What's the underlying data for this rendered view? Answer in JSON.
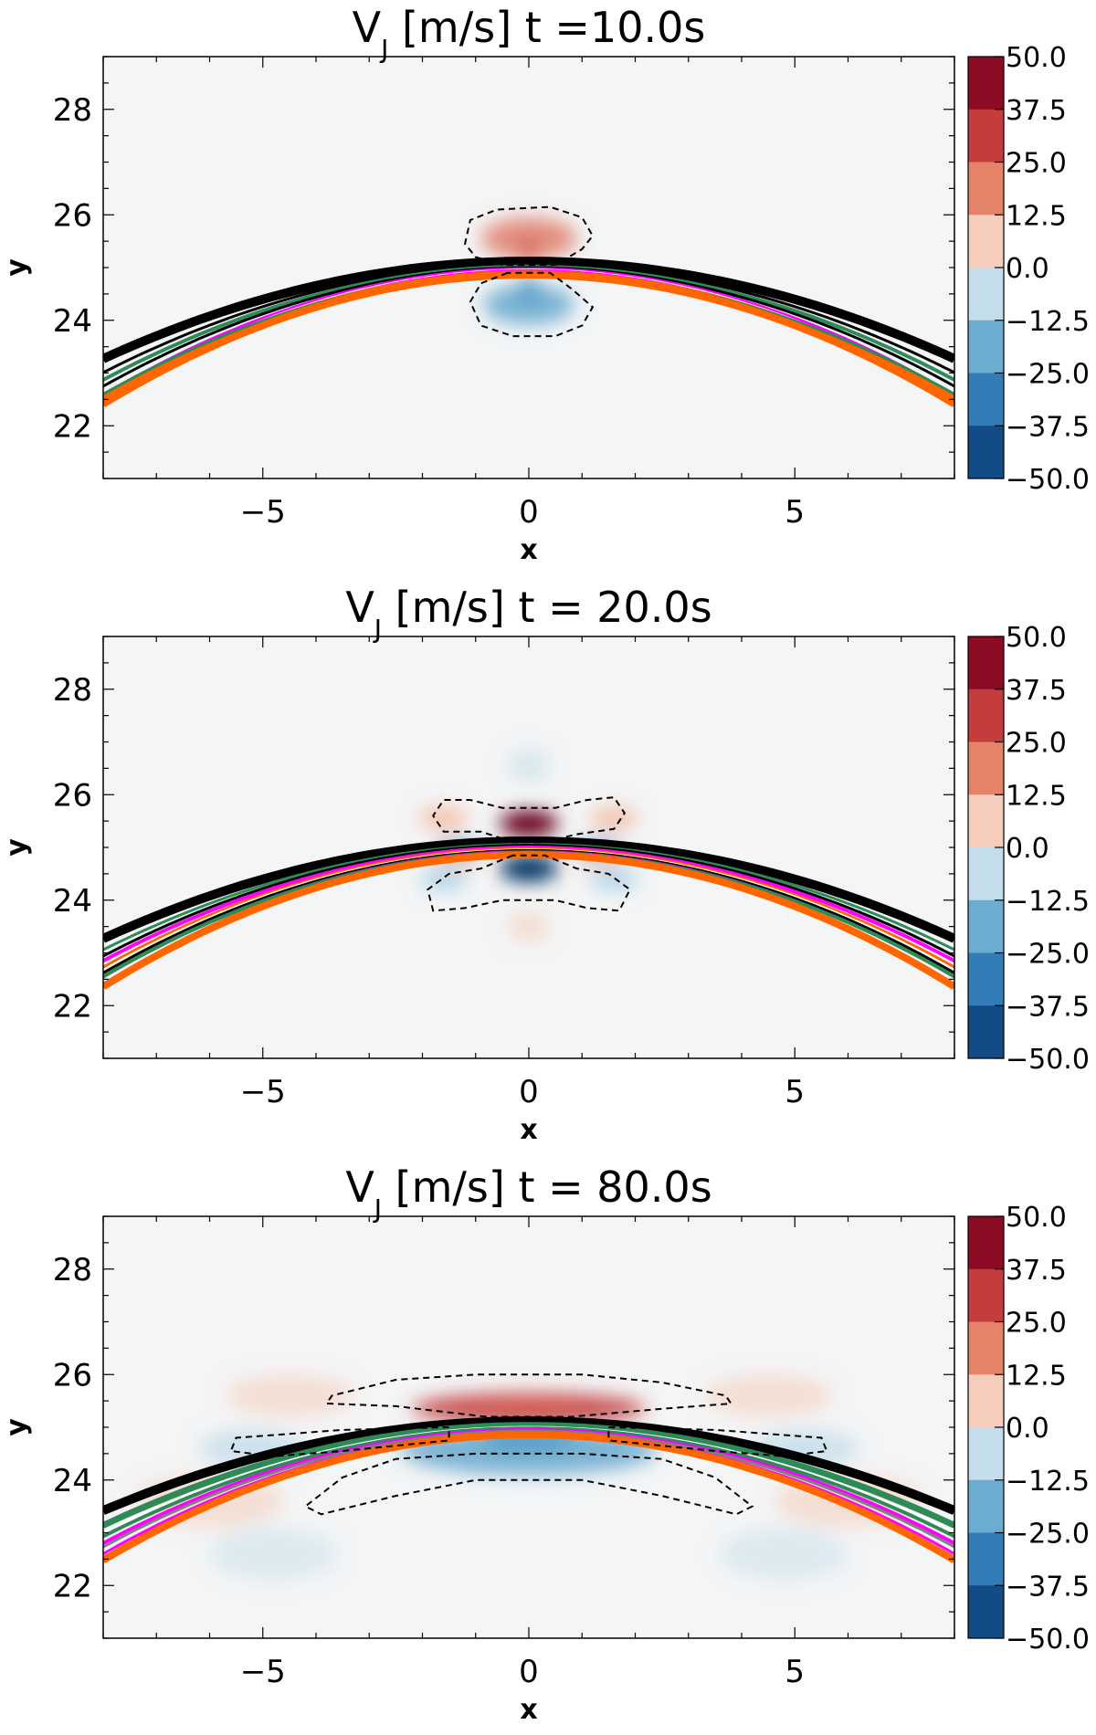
{
  "chart_data": [
    {
      "type": "heatmap",
      "title": "V_J [m/s] t =10.0s",
      "title_main": "V",
      "title_sub": "J",
      "title_rest": " [m/s]  t =10.0s",
      "xlabel": "x",
      "ylabel": "y",
      "xlim": [
        -8,
        8
      ],
      "ylim": [
        21,
        29
      ],
      "xticks": [
        "−5",
        "0",
        "5"
      ],
      "xtick_values": [
        -5,
        0,
        5
      ],
      "yticks": [
        "22",
        "24",
        "26",
        "28"
      ],
      "ytick_values": [
        22,
        24,
        26,
        28
      ],
      "colorbar_range": [
        -50,
        50
      ],
      "colorbar_ticks": [
        "50.0",
        "37.5",
        "25.0",
        "12.5",
        "0.0",
        "−12.5",
        "−25.0",
        "−37.5",
        "−50.0"
      ],
      "colorbar_tick_values": [
        50,
        37.5,
        25,
        12.5,
        0,
        -12.5,
        -25,
        -37.5,
        -50
      ],
      "velocity_features": [
        {
          "sign": "positive",
          "x": 0,
          "y": 25.55,
          "sx": 0.9,
          "sy": 0.4,
          "amp": 22
        },
        {
          "sign": "positive",
          "x": 0,
          "y": 25.3,
          "sx": 0.12,
          "sy": 0.25,
          "amp": 30
        },
        {
          "sign": "negative",
          "x": 0,
          "y": 24.3,
          "sx": 0.85,
          "sy": 0.38,
          "amp": 22
        },
        {
          "sign": "negative",
          "x": 0,
          "y": 24.6,
          "sx": 0.12,
          "sy": 0.25,
          "amp": 30
        }
      ],
      "contours": [
        [
          [
            -0.5,
            25.05
          ],
          [
            -1.0,
            25.2
          ],
          [
            -1.2,
            25.45
          ],
          [
            -1.1,
            25.9
          ],
          [
            -0.6,
            26.1
          ],
          [
            0.4,
            26.15
          ],
          [
            1.0,
            25.95
          ],
          [
            1.2,
            25.6
          ],
          [
            1.0,
            25.35
          ],
          [
            0.5,
            25.05
          ]
        ],
        [
          [
            -0.4,
            24.9
          ],
          [
            -0.9,
            24.7
          ],
          [
            -1.1,
            24.35
          ],
          [
            -0.9,
            23.9
          ],
          [
            -0.3,
            23.7
          ],
          [
            0.5,
            23.7
          ],
          [
            1.0,
            23.9
          ],
          [
            1.2,
            24.25
          ],
          [
            0.8,
            24.6
          ],
          [
            0.4,
            24.9
          ]
        ]
      ],
      "field_lines": [
        {
          "color": "#000000",
          "apex": 25.12,
          "drop": 1.85,
          "width": 10
        },
        {
          "color": "#000000",
          "apex": 25.06,
          "drop": 2.05,
          "width": 3
        },
        {
          "color": "#2e8b57",
          "apex": 25.02,
          "drop": 2.15,
          "width": 4
        },
        {
          "color": "#000000",
          "apex": 25.0,
          "drop": 2.25,
          "width": 3
        },
        {
          "color": "#ff00ff",
          "apex": 24.98,
          "drop": 2.4,
          "width": 3
        },
        {
          "color": "#ffffff",
          "apex": 24.96,
          "drop": 2.45,
          "width": 2
        },
        {
          "color": "#ff00ff",
          "apex": 24.94,
          "drop": 2.5,
          "width": 3
        },
        {
          "color": "#ff6600",
          "apex": 24.9,
          "drop": 2.38,
          "width": 5
        },
        {
          "color": "#2e8b57",
          "apex": 24.88,
          "drop": 2.28,
          "width": 3
        },
        {
          "color": "#ff6600",
          "apex": 24.86,
          "drop": 2.45,
          "width": 8
        }
      ]
    },
    {
      "type": "heatmap",
      "title": "V_J [m/s] t = 20.0s",
      "title_main": "V",
      "title_sub": "J",
      "title_rest": " [m/s]  t =  20.0s",
      "xlabel": "x",
      "ylabel": "y",
      "xlim": [
        -8,
        8
      ],
      "ylim": [
        21,
        29
      ],
      "xticks": [
        "−5",
        "0",
        "5"
      ],
      "xtick_values": [
        -5,
        0,
        5
      ],
      "yticks": [
        "22",
        "24",
        "26",
        "28"
      ],
      "ytick_values": [
        22,
        24,
        26,
        28
      ],
      "colorbar_range": [
        -50,
        50
      ],
      "colorbar_ticks": [
        "50.0",
        "37.5",
        "25.0",
        "12.5",
        "0.0",
        "−12.5",
        "−25.0",
        "−37.5",
        "−50.0"
      ],
      "colorbar_tick_values": [
        50,
        37.5,
        25,
        12.5,
        0,
        -12.5,
        -25,
        -37.5,
        -50
      ],
      "velocity_features": [
        {
          "sign": "positive",
          "x": 0,
          "y": 25.45,
          "sx": 0.55,
          "sy": 0.25,
          "amp": 50
        },
        {
          "sign": "negative",
          "x": 0,
          "y": 24.6,
          "sx": 0.55,
          "sy": 0.25,
          "amp": 50
        },
        {
          "sign": "positive",
          "x": -1.6,
          "y": 25.55,
          "sx": 0.45,
          "sy": 0.22,
          "amp": 12
        },
        {
          "sign": "positive",
          "x": 1.6,
          "y": 25.55,
          "sx": 0.45,
          "sy": 0.22,
          "amp": 12
        },
        {
          "sign": "negative",
          "x": -1.6,
          "y": 24.4,
          "sx": 0.45,
          "sy": 0.22,
          "amp": 12
        },
        {
          "sign": "negative",
          "x": 1.6,
          "y": 24.4,
          "sx": 0.45,
          "sy": 0.22,
          "amp": 12
        },
        {
          "sign": "negative",
          "x": -1.3,
          "y": 25.0,
          "sx": 0.45,
          "sy": 0.15,
          "amp": 22
        },
        {
          "sign": "negative",
          "x": 1.3,
          "y": 25.0,
          "sx": 0.45,
          "sy": 0.15,
          "amp": 22
        },
        {
          "sign": "positive",
          "x": -1.3,
          "y": 24.75,
          "sx": 0.45,
          "sy": 0.12,
          "amp": 10
        },
        {
          "sign": "positive",
          "x": 1.3,
          "y": 24.75,
          "sx": 0.45,
          "sy": 0.12,
          "amp": 10
        },
        {
          "sign": "negative",
          "x": 0,
          "y": 26.55,
          "sx": 0.4,
          "sy": 0.3,
          "amp": 6
        },
        {
          "sign": "positive",
          "x": 0,
          "y": 23.5,
          "sx": 0.4,
          "sy": 0.3,
          "amp": 6
        }
      ],
      "contours": [
        [
          [
            -0.3,
            25.1
          ],
          [
            -0.9,
            25.3
          ],
          [
            -1.6,
            25.3
          ],
          [
            -1.8,
            25.6
          ],
          [
            -1.6,
            25.9
          ],
          [
            -1.1,
            25.9
          ],
          [
            -0.5,
            25.75
          ],
          [
            0.5,
            25.75
          ],
          [
            1.1,
            25.9
          ],
          [
            1.6,
            25.95
          ],
          [
            1.8,
            25.65
          ],
          [
            1.6,
            25.35
          ],
          [
            0.9,
            25.25
          ],
          [
            0.3,
            25.1
          ]
        ],
        [
          [
            -0.3,
            24.85
          ],
          [
            -0.9,
            24.6
          ],
          [
            -1.5,
            24.5
          ],
          [
            -1.9,
            24.2
          ],
          [
            -1.8,
            23.8
          ],
          [
            -1.2,
            23.85
          ],
          [
            -0.5,
            24.0
          ],
          [
            0.5,
            24.0
          ],
          [
            1.1,
            23.85
          ],
          [
            1.7,
            23.8
          ],
          [
            1.9,
            24.2
          ],
          [
            1.5,
            24.5
          ],
          [
            0.9,
            24.6
          ],
          [
            0.3,
            24.85
          ]
        ]
      ],
      "field_lines": [
        {
          "color": "#000000",
          "apex": 25.12,
          "drop": 1.85,
          "width": 10
        },
        {
          "color": "#2e8b57",
          "apex": 25.06,
          "drop": 2.0,
          "width": 3
        },
        {
          "color": "#000000",
          "apex": 25.04,
          "drop": 2.1,
          "width": 3
        },
        {
          "color": "#ff00ff",
          "apex": 25.0,
          "drop": 2.15,
          "width": 4
        },
        {
          "color": "#ff6600",
          "apex": 24.98,
          "drop": 2.25,
          "width": 3
        },
        {
          "color": "#ffffff",
          "apex": 24.96,
          "drop": 2.28,
          "width": 2
        },
        {
          "color": "#000000",
          "apex": 24.94,
          "drop": 2.32,
          "width": 3
        },
        {
          "color": "#ff00ff",
          "apex": 24.92,
          "drop": 2.38,
          "width": 3
        },
        {
          "color": "#2e8b57",
          "apex": 24.9,
          "drop": 2.35,
          "width": 4
        },
        {
          "color": "#ff6600",
          "apex": 24.86,
          "drop": 2.5,
          "width": 8
        }
      ]
    },
    {
      "type": "heatmap",
      "title": "V_J [m/s] t = 80.0s",
      "title_main": "V",
      "title_sub": "J",
      "title_rest": " [m/s]  t =  80.0s",
      "xlabel": "x",
      "ylabel": "y",
      "xlim": [
        -8,
        8
      ],
      "ylim": [
        21,
        29
      ],
      "xticks": [
        "−5",
        "0",
        "5"
      ],
      "xtick_values": [
        -5,
        0,
        5
      ],
      "yticks": [
        "22",
        "24",
        "26",
        "28"
      ],
      "ytick_values": [
        22,
        24,
        26,
        28
      ],
      "colorbar_range": [
        -50,
        50
      ],
      "colorbar_ticks": [
        "50.0",
        "37.5",
        "25.0",
        "12.5",
        "0.0",
        "−12.5",
        "−25.0",
        "−37.5",
        "−50.0"
      ],
      "colorbar_tick_values": [
        50,
        37.5,
        25,
        12.5,
        0,
        -12.5,
        -25,
        -37.5,
        -50
      ],
      "velocity_features": [
        {
          "sign": "positive",
          "x": 0,
          "y": 25.35,
          "sx": 2.2,
          "sy": 0.3,
          "amp": 32
        },
        {
          "sign": "positive",
          "x": 0,
          "y": 25.3,
          "sx": 0.9,
          "sy": 0.2,
          "amp": 25
        },
        {
          "sign": "negative",
          "x": 0,
          "y": 24.55,
          "sx": 2.4,
          "sy": 0.45,
          "amp": 22
        },
        {
          "sign": "negative",
          "x": 0,
          "y": 24.8,
          "sx": 0.9,
          "sy": 0.2,
          "amp": 25
        },
        {
          "sign": "positive",
          "x": -4.5,
          "y": 25.6,
          "sx": 1.2,
          "sy": 0.4,
          "amp": 6
        },
        {
          "sign": "positive",
          "x": 4.5,
          "y": 25.6,
          "sx": 1.2,
          "sy": 0.4,
          "amp": 6
        },
        {
          "sign": "negative",
          "x": -5.2,
          "y": 24.6,
          "sx": 1.0,
          "sy": 0.35,
          "amp": 8
        },
        {
          "sign": "negative",
          "x": 5.2,
          "y": 24.6,
          "sx": 1.0,
          "sy": 0.35,
          "amp": 8
        },
        {
          "sign": "positive",
          "x": -6.0,
          "y": 23.6,
          "sx": 1.4,
          "sy": 0.5,
          "amp": 6
        },
        {
          "sign": "positive",
          "x": 6.0,
          "y": 23.6,
          "sx": 1.4,
          "sy": 0.5,
          "amp": 6
        },
        {
          "sign": "negative",
          "x": -4.8,
          "y": 22.6,
          "sx": 1.2,
          "sy": 0.5,
          "amp": 5
        },
        {
          "sign": "negative",
          "x": 4.8,
          "y": 22.6,
          "sx": 1.2,
          "sy": 0.5,
          "amp": 5
        }
      ],
      "contours": [
        [
          [
            -0.8,
            25.2
          ],
          [
            -2.5,
            25.4
          ],
          [
            -3.8,
            25.45
          ],
          [
            -3.7,
            25.6
          ],
          [
            -2.5,
            25.9
          ],
          [
            -1.0,
            26.0
          ],
          [
            1.0,
            26.0
          ],
          [
            2.5,
            25.85
          ],
          [
            3.7,
            25.6
          ],
          [
            3.8,
            25.45
          ],
          [
            2.5,
            25.35
          ],
          [
            0.8,
            25.2
          ]
        ],
        [
          [
            -1.5,
            25.0
          ],
          [
            -3.5,
            24.95
          ],
          [
            -5.5,
            24.8
          ],
          [
            -5.6,
            24.55
          ],
          [
            -4.8,
            24.45
          ],
          [
            -3.5,
            24.55
          ],
          [
            -1.5,
            24.75
          ]
        ],
        [
          [
            1.5,
            25.0
          ],
          [
            3.5,
            24.95
          ],
          [
            5.5,
            24.8
          ],
          [
            5.6,
            24.55
          ],
          [
            4.8,
            24.45
          ],
          [
            3.5,
            24.55
          ],
          [
            1.5,
            24.75
          ]
        ],
        [
          [
            -1.0,
            24.5
          ],
          [
            -2.5,
            24.4
          ],
          [
            -3.5,
            24.05
          ],
          [
            -4.2,
            23.5
          ],
          [
            -3.9,
            23.35
          ],
          [
            -2.5,
            23.7
          ],
          [
            -1.0,
            24.0
          ],
          [
            1.0,
            24.0
          ],
          [
            2.5,
            23.7
          ],
          [
            3.9,
            23.35
          ],
          [
            4.2,
            23.5
          ],
          [
            3.5,
            24.05
          ],
          [
            2.5,
            24.4
          ],
          [
            1.0,
            24.5
          ]
        ]
      ],
      "field_lines": [
        {
          "color": "#000000",
          "apex": 25.12,
          "drop": 1.7,
          "width": 10
        },
        {
          "color": "#000000",
          "apex": 25.08,
          "drop": 1.95,
          "width": 3
        },
        {
          "color": "#2e8b57",
          "apex": 25.04,
          "drop": 1.9,
          "width": 7
        },
        {
          "color": "#ffffff",
          "apex": 25.0,
          "drop": 2.0,
          "width": 3
        },
        {
          "color": "#2e8b57",
          "apex": 24.98,
          "drop": 2.05,
          "width": 4
        },
        {
          "color": "#ff00ff",
          "apex": 24.95,
          "drop": 2.15,
          "width": 4
        },
        {
          "color": "#808080",
          "apex": 24.93,
          "drop": 2.2,
          "width": 3
        },
        {
          "color": "#ff00ff",
          "apex": 24.9,
          "drop": 2.3,
          "width": 3
        },
        {
          "color": "#ff6600",
          "apex": 24.86,
          "drop": 2.38,
          "width": 8
        }
      ]
    }
  ]
}
